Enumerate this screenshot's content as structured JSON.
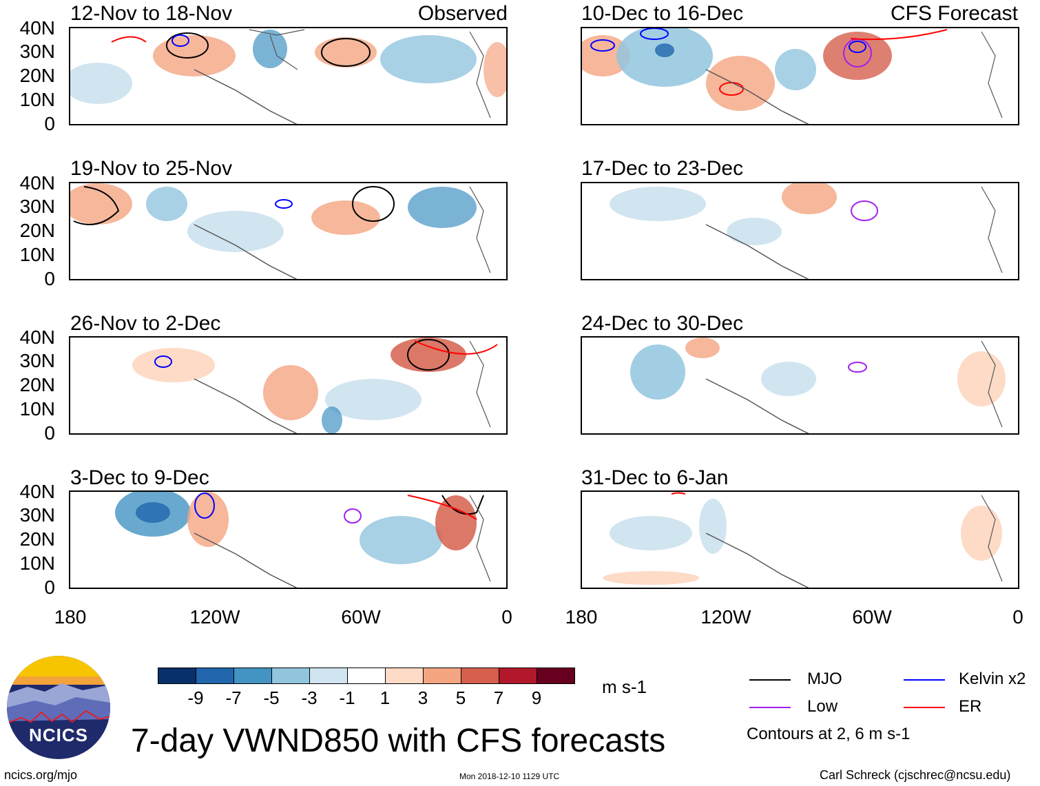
{
  "panels_observed": [
    {
      "title": "12-Nov to 18-Nov",
      "label": "Observed"
    },
    {
      "title": "19-Nov to 25-Nov"
    },
    {
      "title": "26-Nov to 2-Dec"
    },
    {
      "title": "3-Dec to 9-Dec"
    }
  ],
  "panels_forecast": [
    {
      "title": "10-Dec to 16-Dec",
      "label": "CFS Forecast"
    },
    {
      "title": "17-Dec to 23-Dec"
    },
    {
      "title": "24-Dec to 30-Dec"
    },
    {
      "title": "31-Dec to 6-Jan"
    }
  ],
  "y_ticks": [
    "40N",
    "30N",
    "20N",
    "10N",
    "0"
  ],
  "x_ticks": [
    "180",
    "120W",
    "60W",
    "0"
  ],
  "colorbar": {
    "colors": [
      "#08306b",
      "#2166ac",
      "#4393c3",
      "#92c5de",
      "#d1e5f0",
      "#ffffff",
      "#fddbc7",
      "#f4a582",
      "#d6604d",
      "#b2182b",
      "#67001f"
    ],
    "ticks": [
      "-9",
      "-7",
      "-5",
      "-3",
      "-1",
      "1",
      "3",
      "5",
      "7",
      "9"
    ],
    "units": "m s-1"
  },
  "legend": {
    "mjo": "MJO",
    "mjo_color": "#000000",
    "kelvin": "Kelvin x2",
    "kelvin_color": "#0000ff",
    "low": "Low",
    "low_color": "#a020f0",
    "er": "ER",
    "er_color": "#ff0000",
    "contour_note": "Contours at 2, 6 m s-1"
  },
  "logo": {
    "text": "NCICS"
  },
  "main_title": "7-day VWND850 with CFS forecasts",
  "footer": {
    "url": "ncics.org/mjo",
    "timestamp": "Mon 2018-12-10 1129 UTC",
    "author": "Carl Schreck (cjschrec@ncsu.edu)"
  }
}
